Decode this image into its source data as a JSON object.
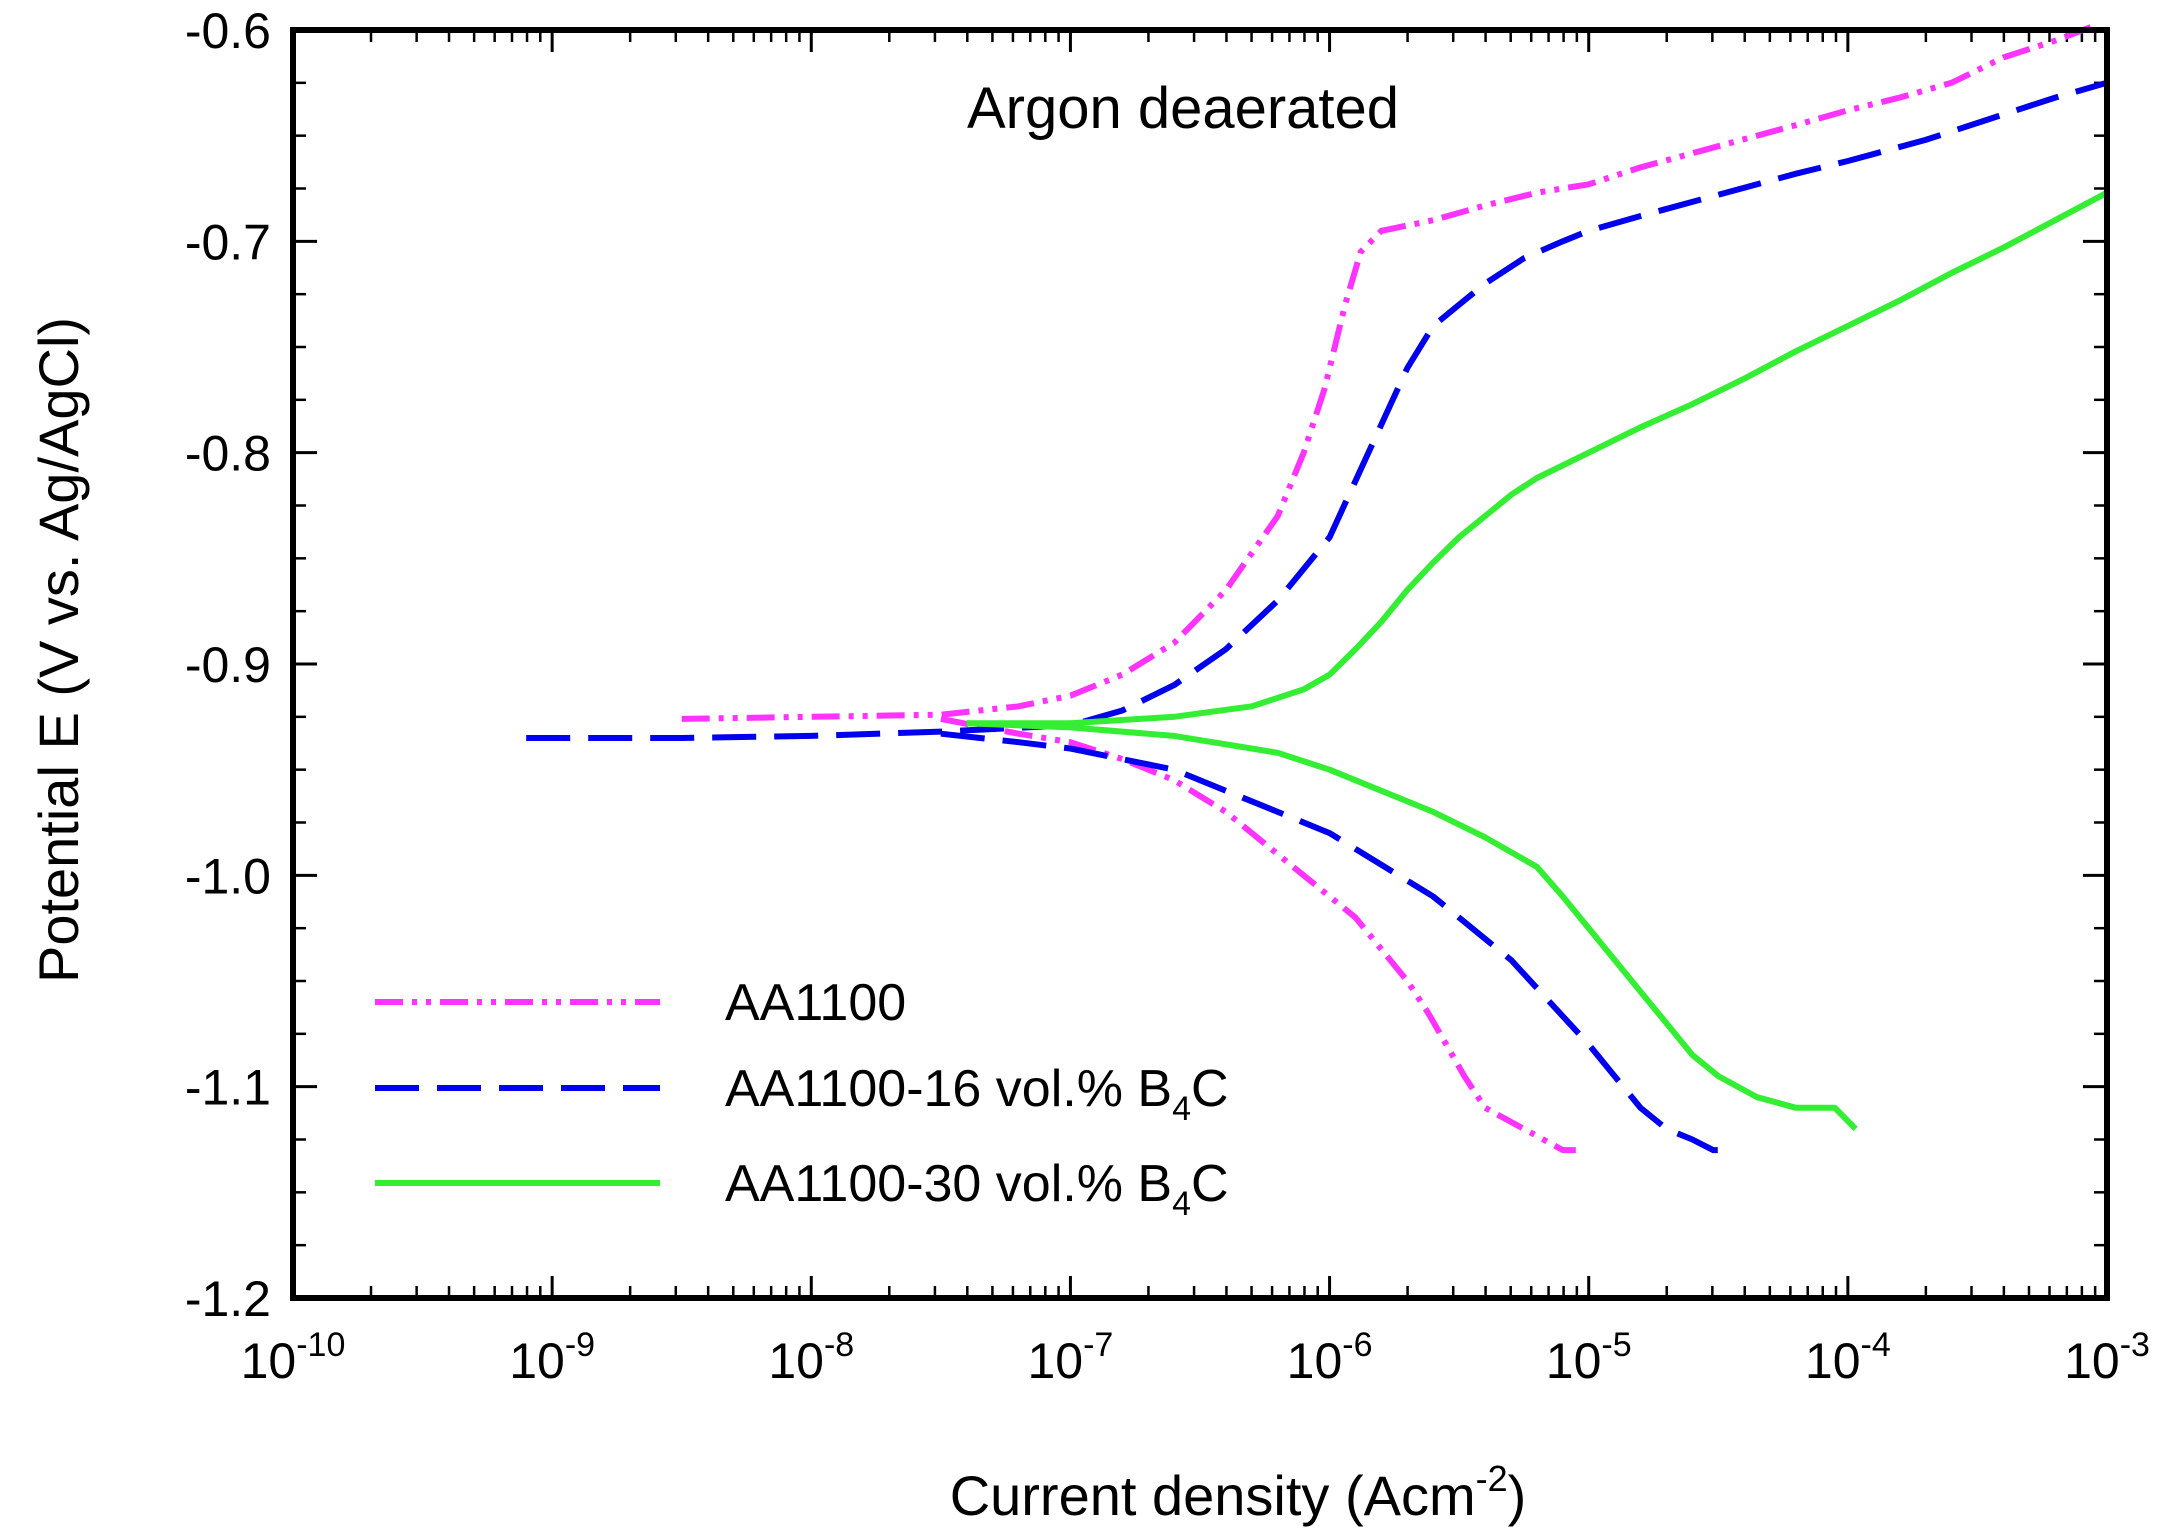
{
  "chart_data": {
    "type": "line",
    "title": "Argon deaerated",
    "xlabel": "Current density (Acm",
    "xlabel_exponent": "-2",
    "xlabel_suffix": ")",
    "ylabel": "Potential E (V vs. Ag/AgCl)",
    "xscale": "log",
    "xlim_log10": [
      -10,
      -3
    ],
    "ylim": [
      -1.2,
      -0.6
    ],
    "x_tick_exponents": [
      "-10",
      "-9",
      "-8",
      "-7",
      "-6",
      "-5",
      "-4",
      "-3"
    ],
    "x_tick_base": "10",
    "y_ticks": [
      "-0.6",
      "-0.7",
      "-0.8",
      "-0.9",
      "-1.0",
      "-1.1",
      "-1.2"
    ],
    "y_tick_values": [
      -0.6,
      -0.7,
      -0.8,
      -0.9,
      -1.0,
      -1.1,
      -1.2
    ],
    "grid": false,
    "legend_position": "bottom-left",
    "series": [
      {
        "name": "AA1100",
        "label_main": "AA1100",
        "label_sub": "",
        "label_tail": "",
        "color": "#ff33ff",
        "style": "dash-dot-dot",
        "anodic": [
          [
            -8.5,
            -0.926
          ],
          [
            -8.0,
            -0.925
          ],
          [
            -7.5,
            -0.924
          ],
          [
            -7.2,
            -0.92
          ],
          [
            -7.0,
            -0.915
          ],
          [
            -6.8,
            -0.905
          ],
          [
            -6.6,
            -0.89
          ],
          [
            -6.4,
            -0.865
          ],
          [
            -6.2,
            -0.83
          ],
          [
            -6.1,
            -0.8
          ],
          [
            -6.02,
            -0.77
          ],
          [
            -5.94,
            -0.73
          ],
          [
            -5.88,
            -0.705
          ],
          [
            -5.8,
            -0.695
          ],
          [
            -5.6,
            -0.69
          ],
          [
            -5.4,
            -0.683
          ],
          [
            -5.2,
            -0.677
          ],
          [
            -5.0,
            -0.673
          ],
          [
            -4.8,
            -0.665
          ],
          [
            -4.5,
            -0.655
          ],
          [
            -4.2,
            -0.645
          ],
          [
            -4.0,
            -0.638
          ],
          [
            -3.8,
            -0.632
          ],
          [
            -3.6,
            -0.625
          ],
          [
            -3.4,
            -0.613
          ],
          [
            -3.2,
            -0.605
          ],
          [
            -3.05,
            -0.598
          ]
        ],
        "cathodic": [
          [
            -7.5,
            -0.926
          ],
          [
            -7.2,
            -0.933
          ],
          [
            -7.0,
            -0.937
          ],
          [
            -6.8,
            -0.945
          ],
          [
            -6.6,
            -0.955
          ],
          [
            -6.4,
            -0.97
          ],
          [
            -6.2,
            -0.99
          ],
          [
            -6.05,
            -1.005
          ],
          [
            -5.9,
            -1.02
          ],
          [
            -5.8,
            -1.035
          ],
          [
            -5.7,
            -1.05
          ],
          [
            -5.62,
            -1.065
          ],
          [
            -5.55,
            -1.08
          ],
          [
            -5.48,
            -1.095
          ],
          [
            -5.4,
            -1.11
          ],
          [
            -5.25,
            -1.12
          ],
          [
            -5.1,
            -1.13
          ],
          [
            -5.05,
            -1.13
          ]
        ]
      },
      {
        "name": "AA1100-16 vol.% B4C",
        "label_main": "AA1100-16 vol.% B",
        "label_sub": "4",
        "label_tail": "C",
        "color": "#0000ee",
        "style": "dashed",
        "anodic": [
          [
            -9.1,
            -0.935
          ],
          [
            -8.5,
            -0.935
          ],
          [
            -8.0,
            -0.934
          ],
          [
            -7.5,
            -0.932
          ],
          [
            -7.0,
            -0.929
          ],
          [
            -6.8,
            -0.922
          ],
          [
            -6.6,
            -0.91
          ],
          [
            -6.4,
            -0.893
          ],
          [
            -6.2,
            -0.87
          ],
          [
            -6.0,
            -0.84
          ],
          [
            -5.85,
            -0.8
          ],
          [
            -5.7,
            -0.76
          ],
          [
            -5.6,
            -0.74
          ],
          [
            -5.5,
            -0.73
          ],
          [
            -5.4,
            -0.72
          ],
          [
            -5.25,
            -0.708
          ],
          [
            -5.1,
            -0.7
          ],
          [
            -5.0,
            -0.695
          ],
          [
            -4.8,
            -0.688
          ],
          [
            -4.5,
            -0.678
          ],
          [
            -4.2,
            -0.668
          ],
          [
            -4.0,
            -0.662
          ],
          [
            -3.7,
            -0.652
          ],
          [
            -3.4,
            -0.64
          ],
          [
            -3.2,
            -0.632
          ],
          [
            -3.0,
            -0.625
          ]
        ],
        "cathodic": [
          [
            -7.5,
            -0.933
          ],
          [
            -7.2,
            -0.937
          ],
          [
            -7.0,
            -0.94
          ],
          [
            -6.8,
            -0.945
          ],
          [
            -6.6,
            -0.95
          ],
          [
            -6.4,
            -0.96
          ],
          [
            -6.2,
            -0.97
          ],
          [
            -6.0,
            -0.98
          ],
          [
            -5.8,
            -0.995
          ],
          [
            -5.6,
            -1.01
          ],
          [
            -5.45,
            -1.025
          ],
          [
            -5.3,
            -1.04
          ],
          [
            -5.15,
            -1.06
          ],
          [
            -5.0,
            -1.08
          ],
          [
            -4.9,
            -1.095
          ],
          [
            -4.8,
            -1.11
          ],
          [
            -4.7,
            -1.12
          ],
          [
            -4.6,
            -1.125
          ],
          [
            -4.52,
            -1.13
          ],
          [
            -4.48,
            -1.13
          ]
        ]
      },
      {
        "name": "AA1100-30 vol.% B4C",
        "label_main": "AA1100-30 vol.% B",
        "label_sub": "4",
        "label_tail": "C",
        "color": "#33ee33",
        "style": "solid",
        "anodic": [
          [
            -7.4,
            -0.928
          ],
          [
            -7.0,
            -0.928
          ],
          [
            -6.6,
            -0.925
          ],
          [
            -6.3,
            -0.92
          ],
          [
            -6.1,
            -0.912
          ],
          [
            -6.0,
            -0.905
          ],
          [
            -5.9,
            -0.893
          ],
          [
            -5.8,
            -0.88
          ],
          [
            -5.7,
            -0.865
          ],
          [
            -5.6,
            -0.852
          ],
          [
            -5.5,
            -0.84
          ],
          [
            -5.4,
            -0.83
          ],
          [
            -5.3,
            -0.82
          ],
          [
            -5.2,
            -0.812
          ],
          [
            -5.0,
            -0.8
          ],
          [
            -4.8,
            -0.788
          ],
          [
            -4.6,
            -0.777
          ],
          [
            -4.4,
            -0.765
          ],
          [
            -4.2,
            -0.752
          ],
          [
            -4.0,
            -0.74
          ],
          [
            -3.8,
            -0.728
          ],
          [
            -3.6,
            -0.715
          ],
          [
            -3.4,
            -0.703
          ],
          [
            -3.2,
            -0.69
          ],
          [
            -3.0,
            -0.677
          ]
        ],
        "cathodic": [
          [
            -7.4,
            -0.928
          ],
          [
            -7.0,
            -0.93
          ],
          [
            -6.6,
            -0.934
          ],
          [
            -6.4,
            -0.938
          ],
          [
            -6.2,
            -0.942
          ],
          [
            -6.0,
            -0.95
          ],
          [
            -5.8,
            -0.96
          ],
          [
            -5.6,
            -0.97
          ],
          [
            -5.4,
            -0.982
          ],
          [
            -5.2,
            -0.996
          ],
          [
            -5.1,
            -1.01
          ],
          [
            -5.0,
            -1.025
          ],
          [
            -4.9,
            -1.04
          ],
          [
            -4.8,
            -1.055
          ],
          [
            -4.7,
            -1.07
          ],
          [
            -4.6,
            -1.085
          ],
          [
            -4.5,
            -1.095
          ],
          [
            -4.35,
            -1.105
          ],
          [
            -4.2,
            -1.11
          ],
          [
            -4.05,
            -1.11
          ],
          [
            -3.97,
            -1.12
          ]
        ]
      }
    ]
  }
}
